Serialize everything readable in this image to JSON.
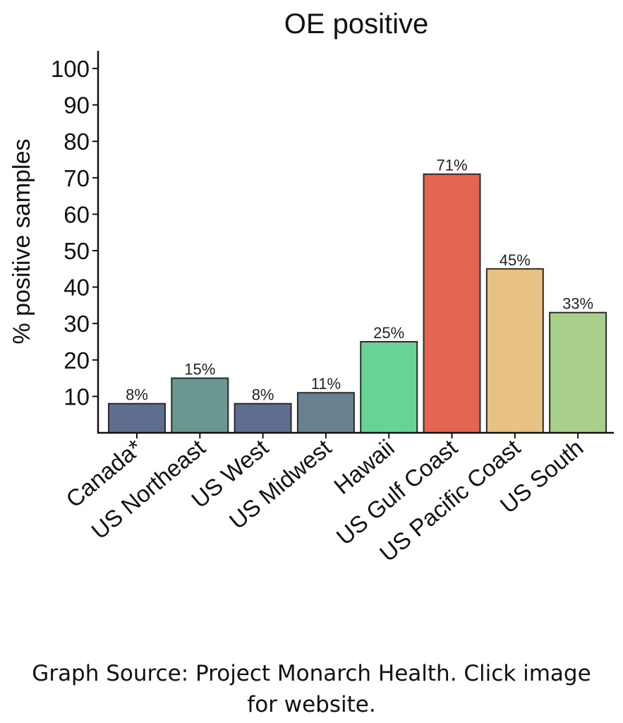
{
  "chart_data": {
    "type": "bar",
    "title": "OE positive",
    "xlabel": "",
    "ylabel": "% positive samples",
    "categories": [
      "Canada*",
      "US Northeast",
      "US West",
      "US Midwest",
      "Hawaii",
      "US Gulf Coast",
      "US Pacific Coast",
      "US South"
    ],
    "values": [
      8,
      15,
      8,
      11,
      25,
      71,
      45,
      33
    ],
    "data_labels": [
      "8%",
      "15%",
      "8%",
      "11%",
      "25%",
      "71%",
      "45%",
      "33%"
    ],
    "colors": [
      "#5f6e8f",
      "#6a9890",
      "#5f6e8f",
      "#67818f",
      "#67d496",
      "#e36450",
      "#e7c282",
      "#a8d08c"
    ],
    "ylim": [
      0,
      100
    ],
    "yticks": [
      10,
      20,
      30,
      40,
      50,
      60,
      70,
      80,
      90,
      100
    ],
    "grid": false,
    "legend": "none"
  },
  "caption": {
    "line1": "Graph Source: Project Monarch Health. Click image",
    "line2": "for website."
  }
}
